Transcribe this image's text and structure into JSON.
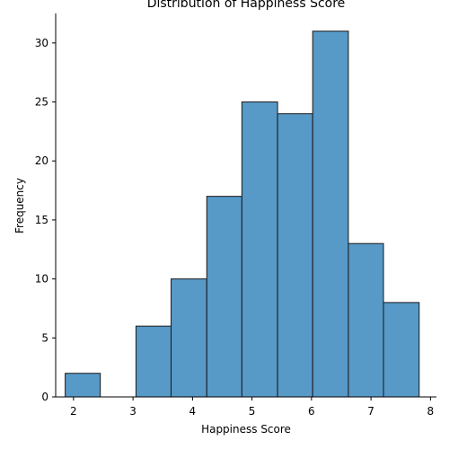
{
  "chart_data": {
    "type": "bar",
    "title": "Distribution of Happiness Score",
    "xlabel": "Happiness Score",
    "ylabel": "Frequency",
    "xlim": [
      1.7,
      8.1
    ],
    "ylim": [
      0,
      32.5
    ],
    "xticks": [
      2,
      3,
      4,
      5,
      6,
      7,
      8
    ],
    "yticks": [
      0,
      5,
      10,
      15,
      20,
      25,
      30
    ],
    "bins": [
      {
        "x0": 1.86,
        "x1": 2.45,
        "value": 2
      },
      {
        "x0": 2.45,
        "x1": 3.05,
        "value": 0
      },
      {
        "x0": 3.05,
        "x1": 3.64,
        "value": 6
      },
      {
        "x0": 3.64,
        "x1": 4.24,
        "value": 10
      },
      {
        "x0": 4.24,
        "x1": 4.83,
        "value": 17
      },
      {
        "x0": 4.83,
        "x1": 5.43,
        "value": 25
      },
      {
        "x0": 5.43,
        "x1": 6.02,
        "value": 24
      },
      {
        "x0": 6.02,
        "x1": 6.62,
        "value": 31
      },
      {
        "x0": 6.62,
        "x1": 7.21,
        "value": 13
      },
      {
        "x0": 7.21,
        "x1": 7.81,
        "value": 8
      }
    ],
    "bar_color": "#5799c7",
    "edge_color": "#1a1a1a",
    "grid": false,
    "legend": "none"
  }
}
